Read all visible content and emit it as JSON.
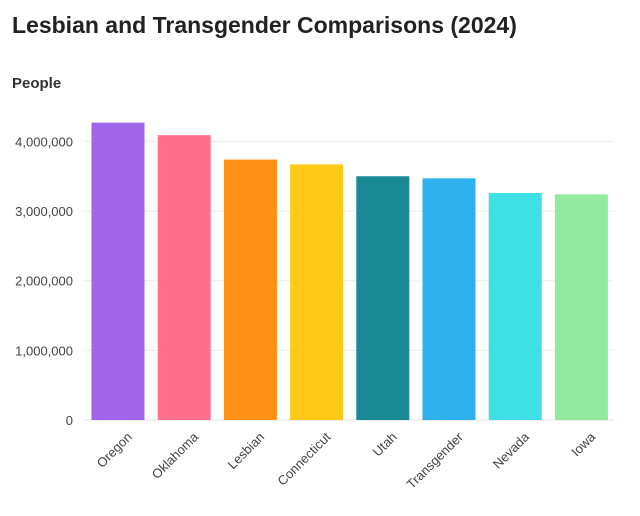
{
  "chart_data": {
    "type": "bar",
    "title": "Lesbian and Transgender Comparisons (2024)",
    "ylabel": "People",
    "xlabel": "",
    "categories": [
      "Oregon",
      "Oklahoma",
      "Lesbian",
      "Connecticut",
      "Utah",
      "Transgender",
      "Nevada",
      "Iowa"
    ],
    "values": [
      4270000,
      4090000,
      3740000,
      3670000,
      3500000,
      3470000,
      3260000,
      3240000
    ],
    "colors": [
      "#a065e8",
      "#ff6f8e",
      "#ff9216",
      "#ffc918",
      "#198a93",
      "#2eb0ec",
      "#3ee0e6",
      "#94e9a1"
    ],
    "yticks": [
      {
        "value": 0,
        "label": "0"
      },
      {
        "value": 1000000,
        "label": "1,000,000"
      },
      {
        "value": 2000000,
        "label": "2,000,000"
      },
      {
        "value": 3000000,
        "label": "3,000,000"
      },
      {
        "value": 4000000,
        "label": "4,000,000"
      }
    ],
    "ylim": [
      0,
      4480000
    ],
    "grid": true,
    "legend": "none"
  }
}
